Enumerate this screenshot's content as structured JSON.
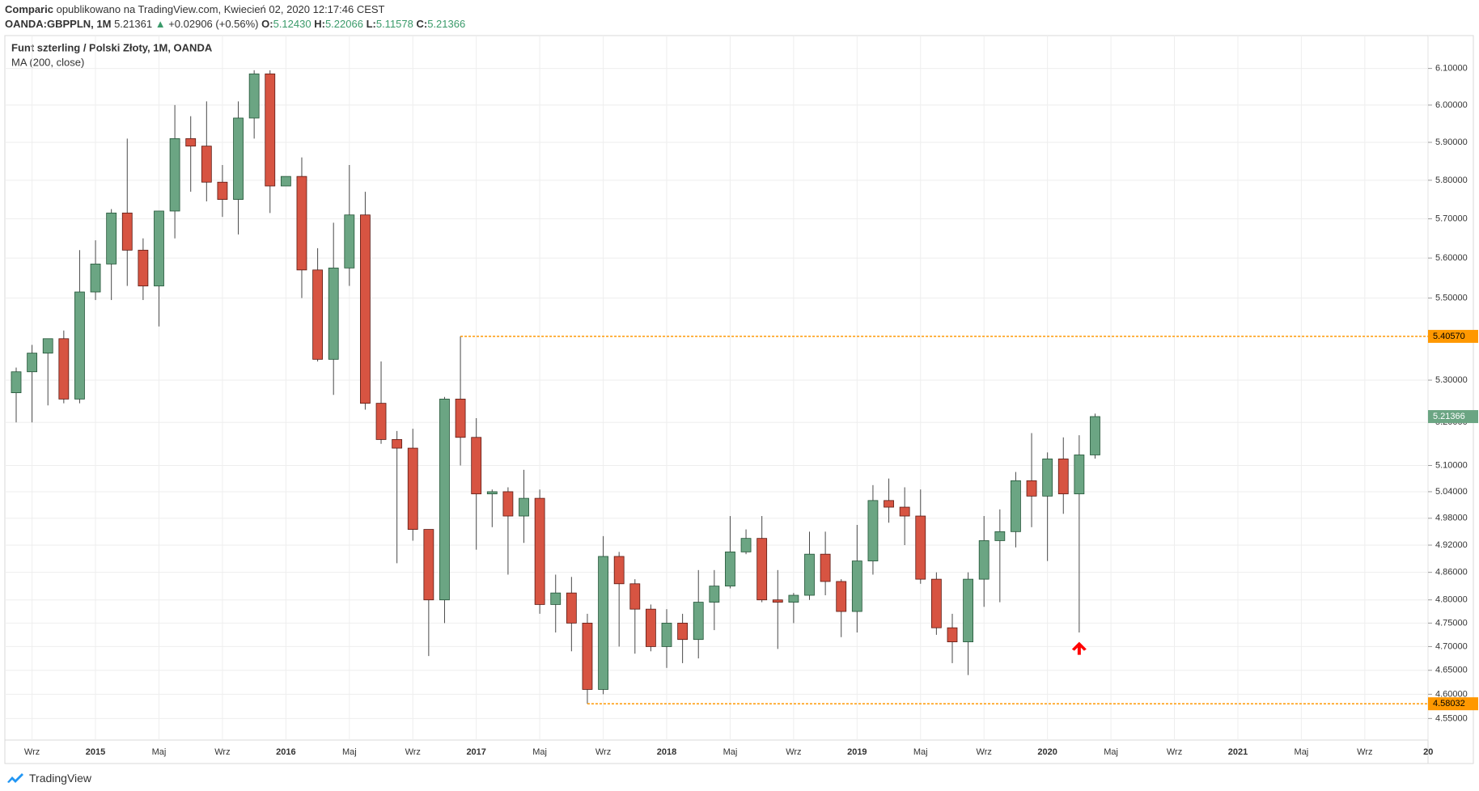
{
  "header": {
    "author": "Comparic",
    "published": "opublikowano na TradingView.com, Kwiecień 02, 2020 12:17:46 CEST",
    "symbol": "OANDA:GBPPLN, 1M",
    "last": "5.21361",
    "change_arrow": "▲",
    "change": "+0.02906 (+0.56%)",
    "ohlc": [
      {
        "label": "O:",
        "value": "5.12430"
      },
      {
        "label": "H:",
        "value": "5.22066"
      },
      {
        "label": "L:",
        "value": "5.11578"
      },
      {
        "label": "C:",
        "value": "5.21366"
      }
    ]
  },
  "footer": {
    "brand": "TradingView"
  },
  "chart_data": {
    "type": "candlestick",
    "title": "Funt szterling / Polski Złoty, 1M, OANDA",
    "indicator": "MA (200, close)",
    "categories": [
      null,
      "Wrz",
      null,
      null,
      null,
      "2015",
      null,
      null,
      null,
      "Maj",
      null,
      null,
      null,
      "Wrz",
      null,
      null,
      null,
      "2016",
      null,
      null,
      null,
      "Maj",
      null,
      null,
      null,
      "Wrz",
      null,
      null,
      null,
      "2017",
      null,
      null,
      null,
      "Maj",
      null,
      null,
      null,
      "Wrz",
      null,
      null,
      null,
      "2018",
      null,
      null,
      null,
      "Maj",
      null,
      null,
      null,
      "Wrz",
      null,
      null,
      null,
      "2019",
      null,
      null,
      null,
      "Maj",
      null,
      null,
      null,
      "Wrz",
      null,
      null,
      null,
      "2020",
      null,
      null,
      null,
      "Maj",
      null,
      null,
      null,
      "Wrz",
      null,
      null,
      null,
      "2021",
      null,
      null,
      null,
      "Maj",
      null,
      null,
      null,
      "Wrz",
      null,
      null,
      null,
      "20"
    ],
    "open": [
      5.27,
      5.32,
      5.365,
      5.4,
      5.255,
      5.515,
      5.585,
      5.715,
      5.62,
      5.53,
      5.72,
      5.91,
      5.89,
      5.795,
      5.75,
      5.965,
      6.085,
      5.785,
      5.81,
      5.57,
      5.35,
      5.575,
      5.71,
      5.245,
      5.16,
      5.14,
      4.955,
      4.8,
      5.255,
      5.165,
      5.035,
      5.04,
      4.985,
      5.025,
      4.79,
      4.815,
      4.75,
      4.61,
      4.895,
      4.835,
      4.78,
      4.7,
      4.75,
      4.715,
      4.795,
      4.83,
      4.905,
      4.935,
      4.8,
      4.795,
      4.81,
      4.9,
      4.84,
      4.775,
      4.885,
      5.02,
      5.005,
      4.985,
      4.845,
      4.74,
      4.71,
      4.845,
      4.93,
      4.95,
      5.065,
      5.03,
      5.115,
      5.035,
      5.1243,
      null,
      null,
      null,
      null,
      null,
      null,
      null,
      null,
      null,
      null,
      null,
      null,
      null,
      null,
      null,
      null,
      null,
      null,
      null,
      null,
      null
    ],
    "high": [
      5.33,
      5.385,
      5.4,
      5.42,
      5.62,
      5.645,
      5.725,
      5.91,
      5.65,
      5.72,
      6.0,
      5.97,
      6.01,
      5.84,
      6.01,
      6.095,
      6.095,
      5.81,
      5.86,
      5.625,
      5.69,
      5.84,
      5.77,
      5.345,
      5.18,
      5.185,
      4.955,
      5.26,
      5.4057,
      5.21,
      5.045,
      5.05,
      5.09,
      5.045,
      4.855,
      4.85,
      4.77,
      4.94,
      4.905,
      4.845,
      4.79,
      4.78,
      4.77,
      4.865,
      4.865,
      4.985,
      4.955,
      4.985,
      4.865,
      4.815,
      4.95,
      4.95,
      4.845,
      4.965,
      5.055,
      5.07,
      5.05,
      5.045,
      4.86,
      4.77,
      4.86,
      4.985,
      5.0,
      5.085,
      5.175,
      5.13,
      5.165,
      5.17,
      5.22066,
      null,
      null,
      null,
      null,
      null,
      null,
      null,
      null,
      null,
      null,
      null,
      null,
      null,
      null,
      null,
      null,
      null,
      null,
      null,
      null,
      null
    ],
    "low": [
      5.2,
      5.2,
      5.24,
      5.245,
      5.245,
      5.495,
      5.495,
      5.53,
      5.495,
      5.43,
      5.65,
      5.77,
      5.745,
      5.705,
      5.66,
      5.91,
      5.715,
      5.785,
      5.5,
      5.345,
      5.265,
      5.53,
      5.23,
      5.15,
      4.88,
      4.93,
      4.68,
      4.75,
      5.1,
      4.91,
      4.96,
      4.855,
      4.925,
      4.77,
      4.73,
      4.69,
      4.58032,
      4.6,
      4.7,
      4.685,
      4.69,
      4.655,
      4.665,
      4.675,
      4.735,
      4.825,
      4.9,
      4.795,
      4.695,
      4.75,
      4.8,
      4.81,
      4.72,
      4.73,
      4.855,
      4.97,
      4.92,
      4.835,
      4.725,
      4.665,
      4.64,
      4.785,
      4.795,
      4.915,
      4.96,
      4.885,
      4.99,
      4.73,
      5.11578,
      null,
      null,
      null,
      null,
      null,
      null,
      null,
      null,
      null,
      null,
      null,
      null,
      null,
      null,
      null,
      null,
      null,
      null,
      null,
      null,
      null
    ],
    "close": [
      5.32,
      5.365,
      5.4,
      5.255,
      5.515,
      5.585,
      5.715,
      5.62,
      5.53,
      5.72,
      5.91,
      5.89,
      5.795,
      5.75,
      5.965,
      6.085,
      5.785,
      5.81,
      5.57,
      5.35,
      5.575,
      5.71,
      5.245,
      5.16,
      5.14,
      4.955,
      4.8,
      5.255,
      5.165,
      5.035,
      5.04,
      4.985,
      5.025,
      4.79,
      4.815,
      4.75,
      4.61,
      4.895,
      4.835,
      4.78,
      4.7,
      4.75,
      4.715,
      4.795,
      4.83,
      4.905,
      4.935,
      4.8,
      4.795,
      4.81,
      4.9,
      4.84,
      4.775,
      4.885,
      5.02,
      5.005,
      4.985,
      4.845,
      4.74,
      4.71,
      4.845,
      4.93,
      4.95,
      5.065,
      5.03,
      5.115,
      5.035,
      5.1243,
      5.21366,
      null,
      null,
      null,
      null,
      null,
      null,
      null,
      null,
      null,
      null,
      null,
      null,
      null,
      null,
      null,
      null,
      null,
      null,
      null,
      null,
      null
    ],
    "up_color": "#6ba583",
    "down_color": "#d75442",
    "up_border": "#225437",
    "down_border": "#5b1a13",
    "wick_color": "#4a4a4a",
    "ylim": [
      4.506,
      6.191
    ],
    "log_scale": true,
    "grid": true,
    "yticks": [
      {
        "value": 6.1,
        "label": "6.10000"
      },
      {
        "value": 6.0,
        "label": "6.00000"
      },
      {
        "value": 5.9,
        "label": "5.90000"
      },
      {
        "value": 5.8,
        "label": "5.80000"
      },
      {
        "value": 5.7,
        "label": "5.70000"
      },
      {
        "value": 5.6,
        "label": "5.60000"
      },
      {
        "value": 5.5,
        "label": "5.50000"
      },
      {
        "value": 5.3,
        "label": "5.30000"
      },
      {
        "value": 5.2,
        "label": "5.20000"
      },
      {
        "value": 5.1,
        "label": "5.10000"
      },
      {
        "value": 5.04,
        "label": "5.04000"
      },
      {
        "value": 4.98,
        "label": "4.98000"
      },
      {
        "value": 4.92,
        "label": "4.92000"
      },
      {
        "value": 4.86,
        "label": "4.86000"
      },
      {
        "value": 4.8,
        "label": "4.80000"
      },
      {
        "value": 4.75,
        "label": "4.75000"
      },
      {
        "value": 4.7,
        "label": "4.70000"
      },
      {
        "value": 4.65,
        "label": "4.65000"
      },
      {
        "value": 4.6,
        "label": "4.60000"
      },
      {
        "value": 4.55,
        "label": "4.55000"
      }
    ],
    "price_lines": [
      {
        "value": 5.4057,
        "label": "5.40570",
        "color": "#ff9800",
        "from": 28
      },
      {
        "value": 4.58032,
        "color": "#ff9800",
        "from": 36
      }
    ],
    "last_price": {
      "value": 5.21366,
      "color": "#6ba583"
    },
    "markers": [
      {
        "index": 67,
        "value": 4.71,
        "color": "#ff0000"
      }
    ]
  }
}
